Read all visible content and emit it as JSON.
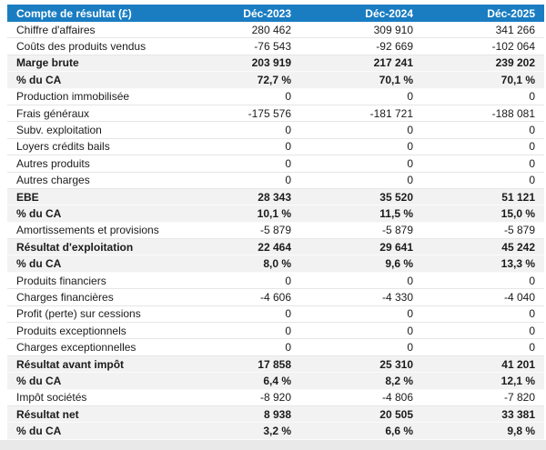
{
  "colors": {
    "header_bg": "#1a7dc2",
    "header_text": "#ffffff",
    "emphasis_row_bg": "#f2f2f2",
    "bottom_strip_bg": "#e9e9e9"
  },
  "chart_data": {
    "type": "table",
    "title": "Compte de résultat (£)",
    "currency": "£",
    "columns": [
      "Déc-2023",
      "Déc-2024",
      "Déc-2025"
    ],
    "rows": [
      {
        "label": "Chiffre d'affaires",
        "values": [
          "280 462",
          "309 910",
          "341 266"
        ],
        "emphasis": false
      },
      {
        "label": "Coûts des produits vendus",
        "values": [
          "-76 543",
          "-92 669",
          "-102 064"
        ],
        "emphasis": false
      },
      {
        "label": "Marge brute",
        "values": [
          "203 919",
          "217 241",
          "239 202"
        ],
        "emphasis": true
      },
      {
        "label": "% du CA",
        "values": [
          "72,7 %",
          "70,1 %",
          "70,1 %"
        ],
        "emphasis": true
      },
      {
        "label": "Production immobilisée",
        "values": [
          "0",
          "0",
          "0"
        ],
        "emphasis": false
      },
      {
        "label": "Frais généraux",
        "values": [
          "-175 576",
          "-181 721",
          "-188 081"
        ],
        "emphasis": false
      },
      {
        "label": "Subv. exploitation",
        "values": [
          "0",
          "0",
          "0"
        ],
        "emphasis": false
      },
      {
        "label": "Loyers crédits bails",
        "values": [
          "0",
          "0",
          "0"
        ],
        "emphasis": false
      },
      {
        "label": "Autres produits",
        "values": [
          "0",
          "0",
          "0"
        ],
        "emphasis": false
      },
      {
        "label": "Autres charges",
        "values": [
          "0",
          "0",
          "0"
        ],
        "emphasis": false
      },
      {
        "label": "EBE",
        "values": [
          "28 343",
          "35 520",
          "51 121"
        ],
        "emphasis": true
      },
      {
        "label": "% du CA",
        "values": [
          "10,1 %",
          "11,5 %",
          "15,0 %"
        ],
        "emphasis": true
      },
      {
        "label": "Amortissements et provisions",
        "values": [
          "-5 879",
          "-5 879",
          "-5 879"
        ],
        "emphasis": false
      },
      {
        "label": "Résultat d'exploitation",
        "values": [
          "22 464",
          "29 641",
          "45 242"
        ],
        "emphasis": true
      },
      {
        "label": "% du CA",
        "values": [
          "8,0 %",
          "9,6 %",
          "13,3 %"
        ],
        "emphasis": true
      },
      {
        "label": "Produits financiers",
        "values": [
          "0",
          "0",
          "0"
        ],
        "emphasis": false
      },
      {
        "label": "Charges financières",
        "values": [
          "-4 606",
          "-4 330",
          "-4 040"
        ],
        "emphasis": false
      },
      {
        "label": "Profit (perte) sur cessions",
        "values": [
          "0",
          "0",
          "0"
        ],
        "emphasis": false
      },
      {
        "label": "Produits exceptionnels",
        "values": [
          "0",
          "0",
          "0"
        ],
        "emphasis": false
      },
      {
        "label": "Charges exceptionnelles",
        "values": [
          "0",
          "0",
          "0"
        ],
        "emphasis": false
      },
      {
        "label": "Résultat avant impôt",
        "values": [
          "17 858",
          "25 310",
          "41 201"
        ],
        "emphasis": true
      },
      {
        "label": "% du CA",
        "values": [
          "6,4 %",
          "8,2 %",
          "12,1 %"
        ],
        "emphasis": true
      },
      {
        "label": "Impôt sociétés",
        "values": [
          "-8 920",
          "-4 806",
          "-7 820"
        ],
        "emphasis": false
      },
      {
        "label": "Résultat net",
        "values": [
          "8 938",
          "20 505",
          "33 381"
        ],
        "emphasis": true
      },
      {
        "label": "% du CA",
        "values": [
          "3,2 %",
          "6,6 %",
          "9,8 %"
        ],
        "emphasis": true
      }
    ]
  }
}
